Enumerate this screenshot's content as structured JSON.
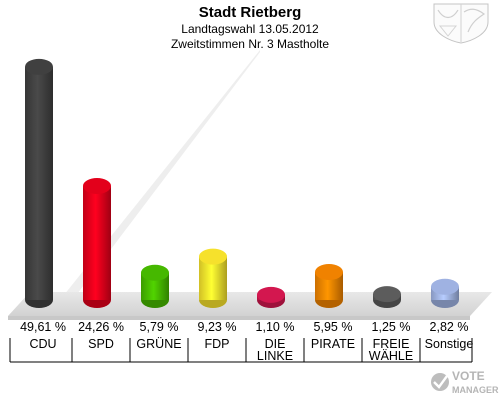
{
  "header": {
    "title": "Stadt Rietberg",
    "subtitle1": "Landtagswahl 13.05.2012",
    "subtitle2": "Zweitstimmen Nr. 3 Mastholte"
  },
  "chart_data": {
    "type": "bar",
    "categories": [
      "CDU",
      "SPD",
      "GRÜNE",
      "FDP",
      "DIE LINKE",
      "PIRATE",
      "FREIE WÄHLE",
      "Sonstige"
    ],
    "category_lines": [
      [
        "CDU"
      ],
      [
        "SPD"
      ],
      [
        "GRÜNE"
      ],
      [
        "FDP"
      ],
      [
        "DIE",
        "LINKE"
      ],
      [
        "PIRATE"
      ],
      [
        "FREIE",
        "WÄHLE"
      ],
      [
        "Sonstige"
      ]
    ],
    "values": [
      49.61,
      24.26,
      5.79,
      9.23,
      1.1,
      5.95,
      1.25,
      2.82
    ],
    "value_labels": [
      "49,61 %",
      "24,26 %",
      "5,79 %",
      "9,23 %",
      "1,10 %",
      "5,95 %",
      "1,25 %",
      "2,82 %"
    ],
    "colors": [
      "#404040",
      "#e3001b",
      "#46b800",
      "#f6e12c",
      "#d3174f",
      "#f08200",
      "#5c5c5c",
      "#9fb2e2"
    ],
    "ylim": [
      0,
      50
    ],
    "grid": false,
    "legend": "none"
  },
  "watermark": {
    "line1": "VOTE",
    "line2": "MANAGER"
  },
  "icons": {
    "crest": "nrw-crest-icon",
    "watermark": "vote-manager-logo-icon"
  }
}
